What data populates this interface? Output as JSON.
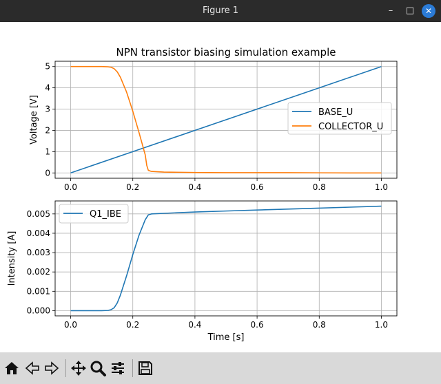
{
  "window": {
    "title": "Figure 1",
    "minimize_icon": "minimize-icon",
    "maximize_icon": "maximize-icon",
    "close_icon": "close-icon"
  },
  "toolbar": {
    "tools": [
      "home-icon",
      "back-icon",
      "forward-icon",
      "pan-icon",
      "zoom-icon",
      "configure-subplots-icon",
      "save-icon"
    ]
  },
  "chart_data": [
    {
      "type": "line",
      "title": "NPN transistor biasing simulation example",
      "xlabel": "",
      "ylabel": "Voltage [V]",
      "xlim": [
        -0.05,
        1.05
      ],
      "ylim": [
        -0.25,
        5.25
      ],
      "xticks": [
        "0.0",
        "0.2",
        "0.4",
        "0.6",
        "0.8",
        "1.0"
      ],
      "yticks": [
        "0",
        "1",
        "2",
        "3",
        "4",
        "5"
      ],
      "grid": true,
      "legend": "center-right",
      "series": [
        {
          "name": "BASE_U",
          "color": "#1f77b4",
          "x": [
            0.0,
            0.25,
            0.5,
            0.75,
            1.0
          ],
          "y": [
            0.0,
            1.25,
            2.5,
            3.75,
            5.0
          ]
        },
        {
          "name": "COLLECTOR_U",
          "color": "#ff7f0e",
          "x": [
            0.0,
            0.05,
            0.1,
            0.12,
            0.13,
            0.14,
            0.15,
            0.16,
            0.18,
            0.2,
            0.22,
            0.24,
            0.245,
            0.25,
            0.26,
            0.3,
            0.4,
            0.5,
            0.6,
            0.7,
            0.8,
            0.9,
            1.0
          ],
          "y": [
            5.0,
            5.0,
            5.0,
            4.99,
            4.97,
            4.9,
            4.75,
            4.5,
            3.8,
            2.9,
            1.9,
            0.85,
            0.35,
            0.12,
            0.07,
            0.04,
            0.02,
            0.01,
            0.01,
            0.01,
            0.005,
            0.0,
            0.0
          ]
        }
      ]
    },
    {
      "type": "line",
      "title": "",
      "xlabel": "Time [s]",
      "ylabel": "Intensity [A]",
      "xlim": [
        -0.05,
        1.05
      ],
      "ylim": [
        -0.00027,
        0.00567
      ],
      "xticks": [
        "0.0",
        "0.2",
        "0.4",
        "0.6",
        "0.8",
        "1.0"
      ],
      "yticks": [
        "0.000",
        "0.001",
        "0.002",
        "0.003",
        "0.004",
        "0.005"
      ],
      "grid": true,
      "legend": "upper-left",
      "series": [
        {
          "name": "Q1_IBE",
          "color": "#1f77b4",
          "x": [
            0.0,
            0.1,
            0.12,
            0.13,
            0.14,
            0.15,
            0.16,
            0.18,
            0.2,
            0.22,
            0.24,
            0.25,
            0.26,
            0.3,
            0.4,
            0.5,
            0.6,
            0.7,
            0.8,
            0.9,
            1.0
          ],
          "y": [
            0.0,
            0.0,
            1e-05,
            5e-05,
            0.00015,
            0.0004,
            0.0008,
            0.0018,
            0.0029,
            0.0039,
            0.0047,
            0.00495,
            0.005,
            0.00503,
            0.0051,
            0.00515,
            0.0052,
            0.00525,
            0.0053,
            0.00535,
            0.0054
          ]
        }
      ]
    }
  ]
}
